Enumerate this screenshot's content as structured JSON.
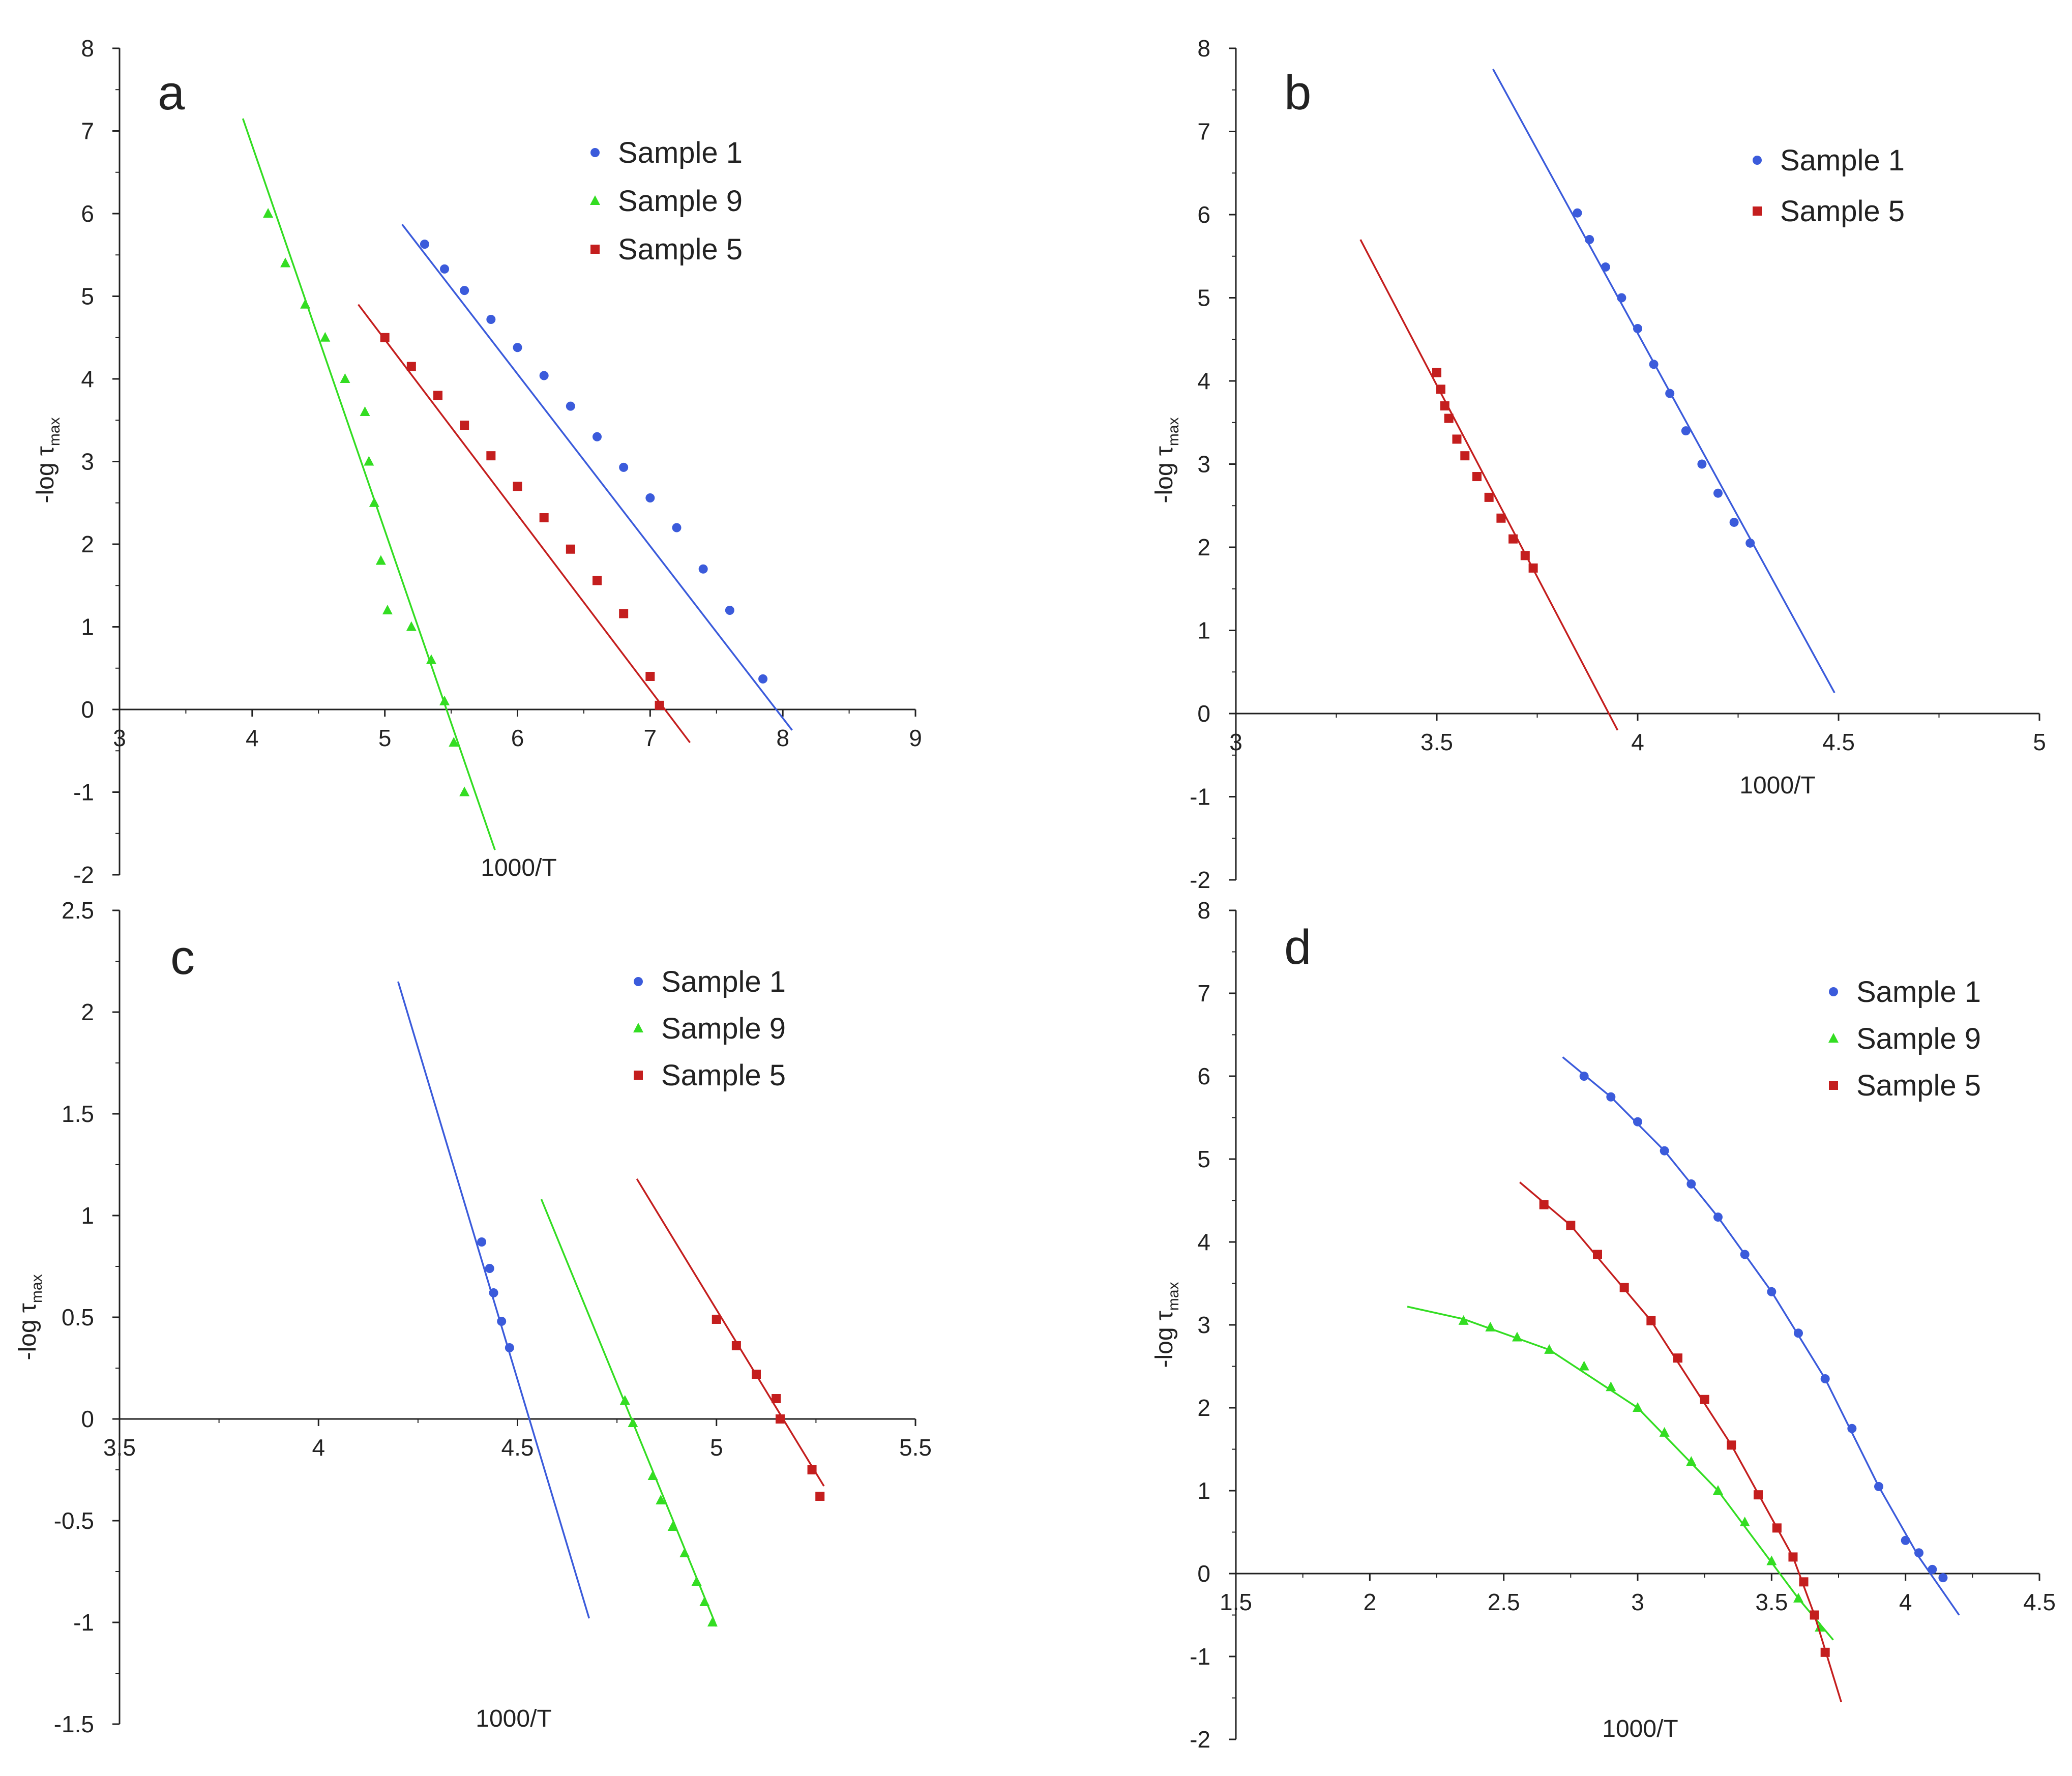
{
  "colors": {
    "sample1": "#3b5bdb",
    "sample9": "#33dd22",
    "sample5": "#c41e1e",
    "axis": "#222222"
  },
  "chart_data": [
    {
      "type": "scatter",
      "panel": "a",
      "xlabel": "1000/T",
      "ylabel": "-log τ",
      "ylabel_sub": "max",
      "xlim": [
        3,
        9
      ],
      "ylim": [
        -2,
        8
      ],
      "xticks": [
        3,
        4,
        5,
        6,
        7,
        8,
        9
      ],
      "yticks": [
        -2,
        -1,
        0,
        1,
        2,
        3,
        4,
        5,
        6,
        7,
        8
      ],
      "legend_position": "top-right",
      "series": [
        {
          "name": "Sample 1",
          "color": "#3b5bdb",
          "marker": "circle",
          "x": [
            5.3,
            5.45,
            5.6,
            5.8,
            6.0,
            6.2,
            6.4,
            6.6,
            6.8,
            7.0,
            7.2,
            7.4,
            7.6,
            7.85
          ],
          "y": [
            5.63,
            5.33,
            5.07,
            4.72,
            4.38,
            4.04,
            3.67,
            3.3,
            2.93,
            2.56,
            2.2,
            1.7,
            1.2,
            0.37
          ],
          "fit": [
            [
              5.13,
              5.87
            ],
            [
              8.07,
              -0.25
            ]
          ]
        },
        {
          "name": "Sample 9",
          "color": "#33dd22",
          "marker": "triangle",
          "x": [
            4.12,
            4.25,
            4.4,
            4.55,
            4.7,
            4.85,
            4.88,
            4.92,
            4.97,
            5.02,
            5.2,
            5.35,
            5.45,
            5.52,
            5.6
          ],
          "y": [
            6.0,
            5.4,
            4.9,
            4.5,
            4.0,
            3.6,
            3.0,
            2.5,
            1.8,
            1.2,
            1.0,
            0.6,
            0.1,
            -0.4,
            -1.0
          ],
          "fit": [
            [
              3.93,
              7.15
            ],
            [
              5.83,
              -1.7
            ]
          ]
        },
        {
          "name": "Sample 5",
          "color": "#c41e1e",
          "marker": "square",
          "x": [
            5.0,
            5.2,
            5.4,
            5.6,
            5.8,
            6.0,
            6.2,
            6.4,
            6.6,
            6.8,
            7.0,
            7.07
          ],
          "y": [
            4.5,
            4.15,
            3.8,
            3.44,
            3.07,
            2.7,
            2.32,
            1.94,
            1.56,
            1.16,
            0.4,
            0.05
          ],
          "fit": [
            [
              4.8,
              4.9
            ],
            [
              7.3,
              -0.4
            ]
          ]
        }
      ]
    },
    {
      "type": "scatter",
      "panel": "b",
      "xlabel": "1000/T",
      "ylabel": "-log τ",
      "ylabel_sub": "max",
      "xlim": [
        3,
        5
      ],
      "ylim": [
        -2,
        8
      ],
      "xticks": [
        3,
        3.5,
        4,
        4.5,
        5
      ],
      "yticks": [
        -2,
        -1,
        0,
        1,
        2,
        3,
        4,
        5,
        6,
        7,
        8
      ],
      "legend_position": "top-right",
      "series": [
        {
          "name": "Sample 1",
          "color": "#3b5bdb",
          "marker": "circle",
          "x": [
            3.85,
            3.88,
            3.92,
            3.96,
            4.0,
            4.04,
            4.08,
            4.12,
            4.16,
            4.2,
            4.24,
            4.28
          ],
          "y": [
            6.02,
            5.7,
            5.37,
            5.0,
            4.63,
            4.2,
            3.85,
            3.4,
            3.0,
            2.65,
            2.3,
            2.05
          ],
          "fit": [
            [
              3.64,
              7.75
            ],
            [
              4.49,
              0.25
            ]
          ]
        },
        {
          "name": "Sample 5",
          "color": "#c41e1e",
          "marker": "square",
          "x": [
            3.5,
            3.51,
            3.52,
            3.53,
            3.55,
            3.57,
            3.6,
            3.63,
            3.66,
            3.69,
            3.72,
            3.74
          ],
          "y": [
            4.1,
            3.9,
            3.7,
            3.55,
            3.3,
            3.1,
            2.85,
            2.6,
            2.35,
            2.1,
            1.9,
            1.75
          ],
          "fit": [
            [
              3.31,
              5.7
            ],
            [
              3.95,
              -0.2
            ]
          ]
        }
      ]
    },
    {
      "type": "scatter",
      "panel": "c",
      "xlabel": "1000/T",
      "ylabel": "-log τ",
      "ylabel_sub": "max",
      "xlim": [
        3.5,
        5.5
      ],
      "ylim": [
        -1.5,
        2.5
      ],
      "xticks": [
        3.5,
        4,
        4.5,
        5,
        5.5
      ],
      "yticks": [
        -1.5,
        -1,
        -0.5,
        0,
        0.5,
        1,
        1.5,
        2,
        2.5
      ],
      "legend_position": "top-right",
      "series": [
        {
          "name": "Sample 1",
          "color": "#3b5bdb",
          "marker": "circle",
          "x": [
            4.41,
            4.43,
            4.44,
            4.46,
            4.48
          ],
          "y": [
            0.87,
            0.74,
            0.62,
            0.48,
            0.35
          ],
          "fit": [
            [
              4.2,
              2.15
            ],
            [
              4.68,
              -0.98
            ]
          ]
        },
        {
          "name": "Sample 9",
          "color": "#33dd22",
          "marker": "triangle",
          "x": [
            4.77,
            4.79,
            4.84,
            4.86,
            4.89,
            4.92,
            4.95,
            4.97,
            4.99
          ],
          "y": [
            0.09,
            -0.02,
            -0.28,
            -0.4,
            -0.53,
            -0.66,
            -0.8,
            -0.9,
            -1.0
          ],
          "fit": [
            [
              4.56,
              1.08
            ],
            [
              5.0,
              -1.02
            ]
          ]
        },
        {
          "name": "Sample 5",
          "color": "#c41e1e",
          "marker": "square",
          "x": [
            5.0,
            5.05,
            5.1,
            5.15,
            5.16,
            5.24,
            5.26
          ],
          "y": [
            0.49,
            0.36,
            0.22,
            0.1,
            0.0,
            -0.25,
            -0.38
          ],
          "fit": [
            [
              4.8,
              1.18
            ],
            [
              5.27,
              -0.33
            ]
          ]
        }
      ]
    },
    {
      "type": "line",
      "panel": "d",
      "xlabel": "1000/T",
      "ylabel": "-log τ",
      "ylabel_sub": "max",
      "xlim": [
        1.5,
        4.5
      ],
      "ylim": [
        -2,
        8
      ],
      "xticks": [
        1.5,
        2,
        2.5,
        3,
        3.5,
        4,
        4.5
      ],
      "yticks": [
        -2,
        -1,
        0,
        1,
        2,
        3,
        4,
        5,
        6,
        7,
        8
      ],
      "legend_position": "top-right",
      "series": [
        {
          "name": "Sample 1",
          "color": "#3b5bdb",
          "marker": "circle",
          "x": [
            2.8,
            2.9,
            3.0,
            3.1,
            3.2,
            3.3,
            3.4,
            3.5,
            3.6,
            3.7,
            3.8,
            3.9,
            4.0,
            4.05,
            4.1,
            4.14
          ],
          "y": [
            6.0,
            5.75,
            5.45,
            5.1,
            4.7,
            4.3,
            3.85,
            3.4,
            2.9,
            2.35,
            1.75,
            1.05,
            0.4,
            0.25,
            0.05,
            -0.05
          ],
          "fit": [
            [
              2.72,
              6.23
            ],
            [
              2.9,
              5.75
            ],
            [
              3.1,
              5.1
            ],
            [
              3.3,
              4.3
            ],
            [
              3.5,
              3.4
            ],
            [
              3.7,
              2.35
            ],
            [
              3.9,
              1.05
            ],
            [
              4.05,
              0.2
            ],
            [
              4.2,
              -0.5
            ]
          ]
        },
        {
          "name": "Sample 9",
          "color": "#33dd22",
          "marker": "triangle",
          "x": [
            2.35,
            2.45,
            2.55,
            2.67,
            2.8,
            2.9,
            3.0,
            3.1,
            3.2,
            3.3,
            3.4,
            3.5,
            3.6,
            3.68
          ],
          "y": [
            3.05,
            2.97,
            2.85,
            2.7,
            2.5,
            2.25,
            2.0,
            1.7,
            1.35,
            1.0,
            0.62,
            0.15,
            -0.3,
            -0.65
          ],
          "fit": [
            [
              2.14,
              3.22
            ],
            [
              2.35,
              3.07
            ],
            [
              2.67,
              2.7
            ],
            [
              3.0,
              2.0
            ],
            [
              3.3,
              1.0
            ],
            [
              3.6,
              -0.3
            ],
            [
              3.73,
              -0.8
            ]
          ]
        },
        {
          "name": "Sample 5",
          "color": "#c41e1e",
          "marker": "square",
          "x": [
            2.65,
            2.75,
            2.85,
            2.95,
            3.05,
            3.15,
            3.25,
            3.35,
            3.45,
            3.52,
            3.58,
            3.62,
            3.66,
            3.7
          ],
          "y": [
            4.45,
            4.2,
            3.85,
            3.45,
            3.05,
            2.6,
            2.1,
            1.55,
            0.95,
            0.55,
            0.2,
            -0.1,
            -0.5,
            -0.95
          ],
          "fit": [
            [
              2.56,
              4.72
            ],
            [
              2.75,
              4.2
            ],
            [
              3.05,
              3.05
            ],
            [
              3.35,
              1.55
            ],
            [
              3.58,
              0.2
            ],
            [
              3.66,
              -0.5
            ],
            [
              3.76,
              -1.55
            ]
          ]
        }
      ]
    }
  ]
}
